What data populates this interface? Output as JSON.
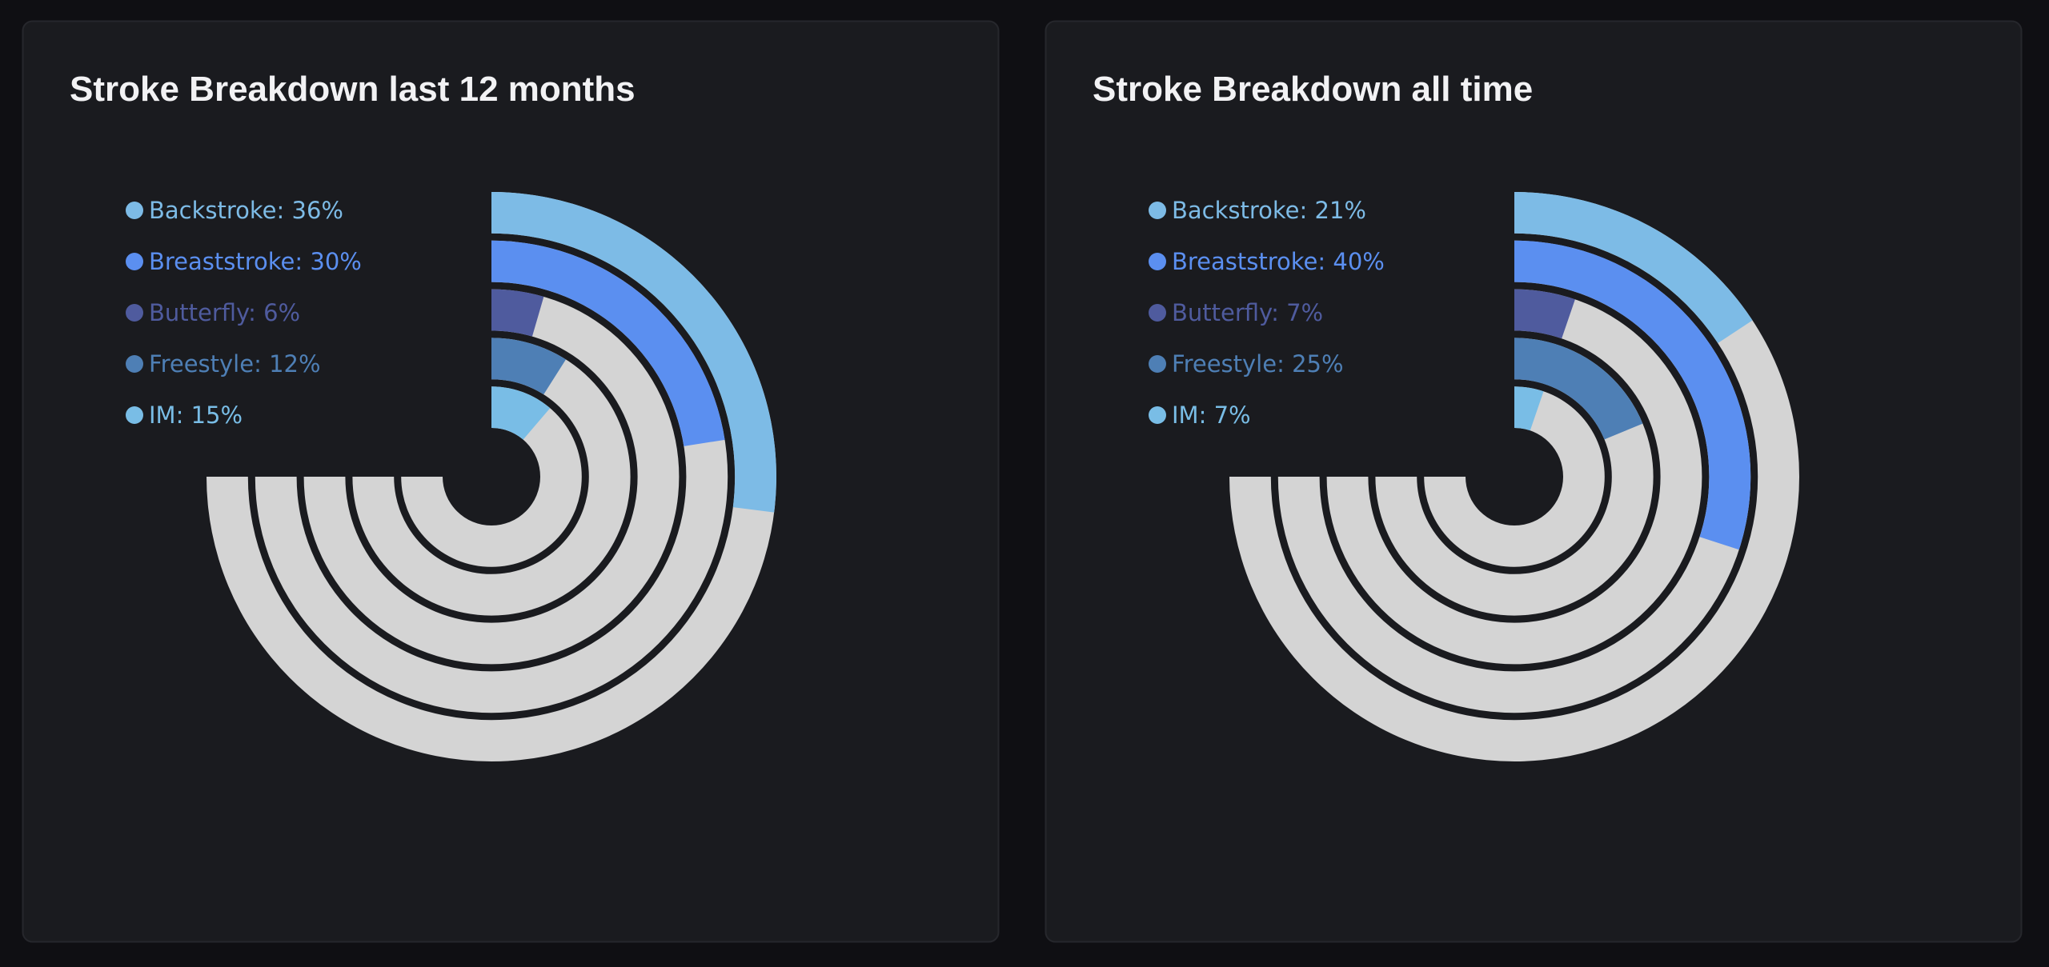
{
  "chart_data": [
    {
      "type": "radialBar",
      "title": "Stroke Breakdown last 12 months",
      "values": [
        36,
        30,
        6,
        12,
        15
      ],
      "value_labels": [
        "Backstroke: 36%",
        "Breaststroke: 30%",
        "Butterfly: 6%",
        "Freestyle: 12%",
        "IM: 15%"
      ],
      "colors": [
        "#7dbbe6",
        "#5b8ff0",
        "#4f5b9e",
        "#4e7fb5",
        "#79bde6"
      ],
      "ylim": [
        0,
        100
      ]
    },
    {
      "type": "radialBar",
      "title": "Stroke Breakdown all time",
      "values": [
        21,
        40,
        7,
        25,
        7
      ],
      "value_labels": [
        "Backstroke: 21%",
        "Breaststroke: 40%",
        "Butterfly: 7%",
        "Freestyle: 25%",
        "IM: 7%"
      ],
      "colors": [
        "#7dbbe6",
        "#5b8ff0",
        "#4f5b9e",
        "#4e7fb5",
        "#79bde6"
      ],
      "ylim": [
        0,
        100
      ]
    }
  ]
}
